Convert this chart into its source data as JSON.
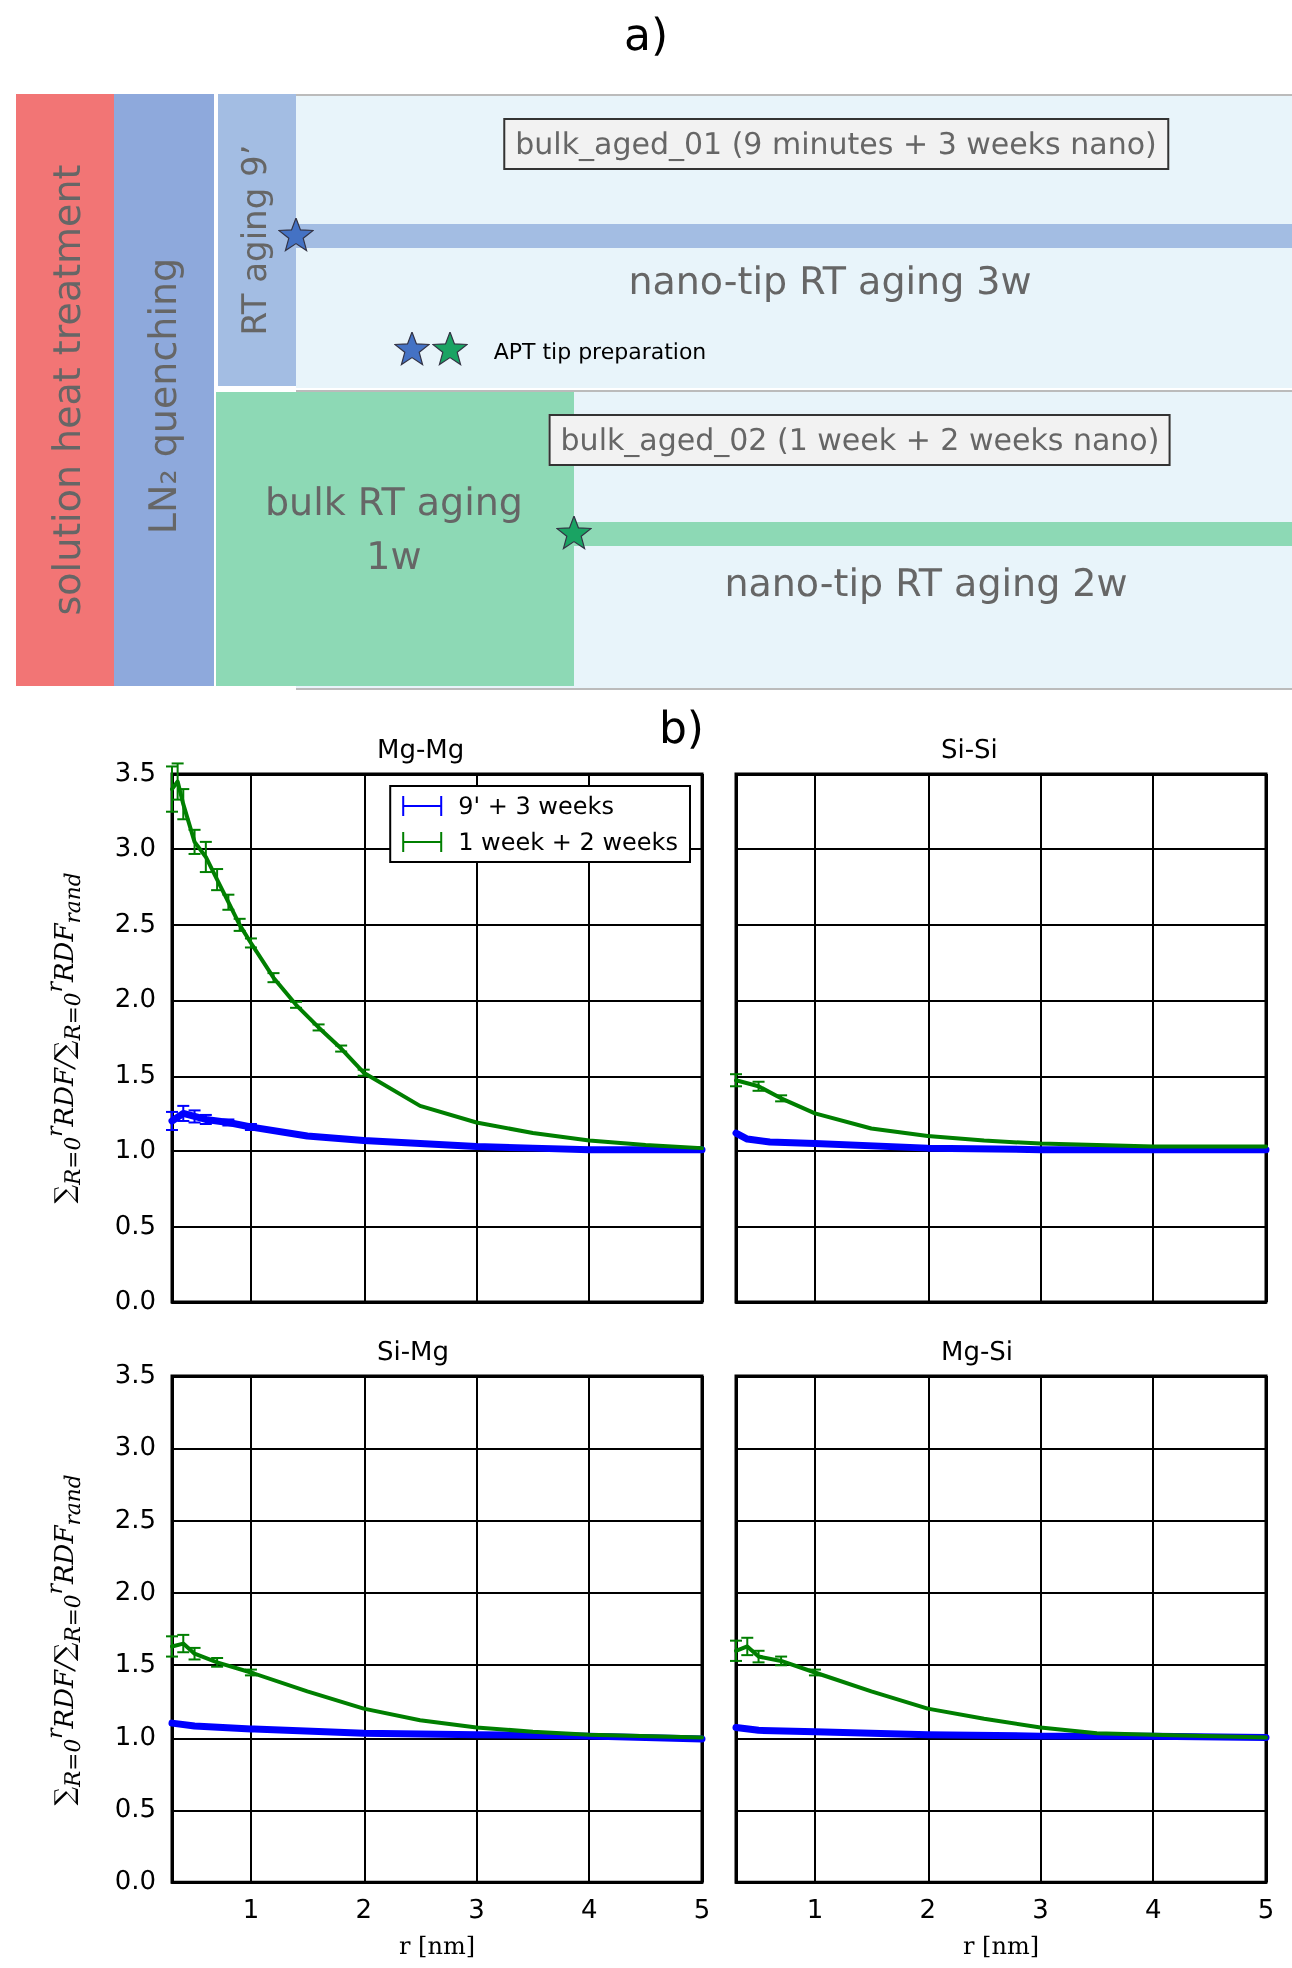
{
  "chart_data": [
    {
      "type": "other",
      "title": "a)",
      "annotations": [
        "solution heat treatment",
        "LN₂ quenching",
        "RT aging 9’",
        "bulk_aged_01 (9 minutes + 3 weeks nano)",
        "nano-tip RT aging 3w",
        "APT tip preparation",
        "bulk_aged_02 (1 week + 2 weeks nano)",
        "bulk RT aging 1w",
        "nano-tip RT aging 2w"
      ]
    },
    {
      "type": "line",
      "title": "Mg-Mg",
      "annotations": [
        "b)"
      ],
      "ylabel": "∑$_{R=0}$$^{r}$RDF/∑$_{R=0}$$^{r}$RDF$_{rand}$",
      "xlim": [
        0.3,
        5
      ],
      "xticks": [
        1,
        2,
        3,
        4,
        5
      ],
      "ylim": [
        0,
        3.5
      ],
      "yticks": [
        {
          "value": 0,
          "label": "0.0"
        },
        {
          "value": 0.5,
          "label": "0.5"
        },
        {
          "value": 1,
          "label": "1.0"
        },
        {
          "value": 1.5,
          "label": "1.5"
        },
        {
          "value": 2,
          "label": "2.0"
        },
        {
          "value": 2.5,
          "label": "2.5"
        },
        {
          "value": 3,
          "label": "3.0"
        },
        {
          "value": 3.5,
          "label": "3.5"
        }
      ],
      "grid": true,
      "legend": "top right",
      "tick_labels": "y",
      "marker": "none",
      "series": [
        {
          "name": "9' + 3 weeks",
          "color": "#0000ff",
          "x": [
            0.3,
            0.4,
            0.5,
            0.6,
            0.8,
            1.0,
            1.5,
            2.0,
            2.5,
            3.0,
            3.5,
            4.0,
            5.0
          ],
          "values": [
            1.2,
            1.25,
            1.23,
            1.21,
            1.19,
            1.16,
            1.1,
            1.07,
            1.05,
            1.03,
            1.02,
            1.01,
            1.01
          ],
          "errors": [
            0.06,
            0.05,
            0.04,
            0.03,
            0.02,
            0.02,
            null,
            null,
            null,
            null,
            null,
            null,
            null
          ]
        },
        {
          "name": "1 week + 2 weeks",
          "color": "#007f00",
          "x": [
            0.3,
            0.35,
            0.4,
            0.5,
            0.6,
            0.7,
            0.8,
            0.9,
            1.0,
            1.2,
            1.4,
            1.6,
            1.8,
            2.0,
            2.5,
            3.0,
            3.5,
            4.0,
            4.5,
            5.0
          ],
          "values": [
            3.4,
            3.45,
            3.3,
            3.05,
            2.95,
            2.8,
            2.65,
            2.5,
            2.38,
            2.15,
            1.97,
            1.82,
            1.68,
            1.52,
            1.3,
            1.19,
            1.12,
            1.07,
            1.04,
            1.02
          ],
          "errors": [
            0.15,
            0.12,
            0.1,
            0.08,
            0.1,
            0.07,
            0.05,
            0.04,
            0.03,
            0.03,
            0.02,
            0.02,
            0.02,
            0.02,
            null,
            null,
            null,
            null,
            null,
            null
          ]
        }
      ]
    },
    {
      "type": "line",
      "title": "Si-Si",
      "xlim": [
        0.3,
        5
      ],
      "xticks": [
        1,
        2,
        3,
        4,
        5
      ],
      "ylim": [
        0,
        3.5
      ],
      "yticks": [
        0,
        0.5,
        1,
        1.5,
        2,
        2.5,
        3,
        3.5
      ],
      "grid": true,
      "tick_labels": false,
      "marker": "none",
      "series": [
        {
          "color": "#0000ff",
          "x": [
            0.3,
            0.4,
            0.6,
            1.0,
            2.0,
            3.0,
            5.0
          ],
          "values": [
            1.12,
            1.08,
            1.06,
            1.05,
            1.02,
            1.01,
            1.01
          ]
        },
        {
          "color": "#007f00",
          "x": [
            0.3,
            0.5,
            0.7,
            1.0,
            1.5,
            2.0,
            2.5,
            3.0,
            4.0,
            5.0
          ],
          "values": [
            1.47,
            1.43,
            1.35,
            1.25,
            1.15,
            1.1,
            1.07,
            1.05,
            1.03,
            1.03
          ],
          "errors": [
            0.04,
            0.03,
            0.02,
            null,
            null,
            null,
            null,
            null,
            null,
            null
          ]
        }
      ]
    },
    {
      "type": "line",
      "title": "Si-Mg",
      "ylabel": "∑$_{R=0}$$^{r}$RDF/∑$_{R=0}$$^{r}$RDF$_{rand}$",
      "xlabel": "r [nm]",
      "xlim": [
        0.3,
        5
      ],
      "xticks": [
        1,
        2,
        3,
        4,
        5
      ],
      "ylim": [
        0,
        3.5
      ],
      "yticks": [
        {
          "value": 0,
          "label": "0.0"
        },
        {
          "value": 0.5,
          "label": "0.5"
        },
        {
          "value": 1,
          "label": "1.0"
        },
        {
          "value": 1.5,
          "label": "1.5"
        },
        {
          "value": 2,
          "label": "2.0"
        },
        {
          "value": 2.5,
          "label": "2.5"
        },
        {
          "value": 3,
          "label": "3.0"
        },
        {
          "value": 3.5,
          "label": "3.5"
        }
      ],
      "grid": true,
      "marker": "none",
      "series": [
        {
          "color": "#0000ff",
          "x": [
            0.3,
            0.5,
            1.0,
            2.0,
            3.0,
            4.0,
            5.0
          ],
          "values": [
            1.1,
            1.08,
            1.06,
            1.03,
            1.02,
            1.01,
            0.99
          ]
        },
        {
          "color": "#007f00",
          "x": [
            0.3,
            0.4,
            0.5,
            0.7,
            1.0,
            1.5,
            2.0,
            2.5,
            3.0,
            3.5,
            4.0,
            5.0
          ],
          "values": [
            1.63,
            1.65,
            1.58,
            1.52,
            1.45,
            1.32,
            1.2,
            1.12,
            1.07,
            1.04,
            1.02,
            1.0
          ],
          "errors": [
            0.07,
            0.06,
            0.04,
            0.03,
            0.02,
            null,
            null,
            null,
            null,
            null,
            null,
            null
          ]
        }
      ]
    },
    {
      "type": "line",
      "title": "Mg-Si",
      "xlabel": "r [nm]",
      "xlim": [
        0.3,
        5
      ],
      "xticks": [
        1,
        2,
        3,
        4,
        5
      ],
      "ylim": [
        0,
        3.5
      ],
      "yticks": [
        0,
        0.5,
        1,
        1.5,
        2,
        2.5,
        3,
        3.5
      ],
      "grid": true,
      "tick_labels": "x",
      "marker": "none",
      "series": [
        {
          "color": "#0000ff",
          "x": [
            0.3,
            0.5,
            1.0,
            2.0,
            3.0,
            4.0,
            5.0
          ],
          "values": [
            1.07,
            1.05,
            1.04,
            1.02,
            1.01,
            1.01,
            1.0
          ]
        },
        {
          "color": "#007f00",
          "x": [
            0.3,
            0.4,
            0.5,
            0.7,
            1.0,
            1.5,
            2.0,
            2.5,
            3.0,
            3.5,
            4.0,
            5.0
          ],
          "values": [
            1.6,
            1.63,
            1.56,
            1.53,
            1.45,
            1.32,
            1.2,
            1.13,
            1.07,
            1.03,
            1.02,
            1.0
          ],
          "errors": [
            0.07,
            0.06,
            0.04,
            0.03,
            0.02,
            null,
            null,
            null,
            null,
            null,
            null,
            null
          ]
        }
      ]
    }
  ]
}
